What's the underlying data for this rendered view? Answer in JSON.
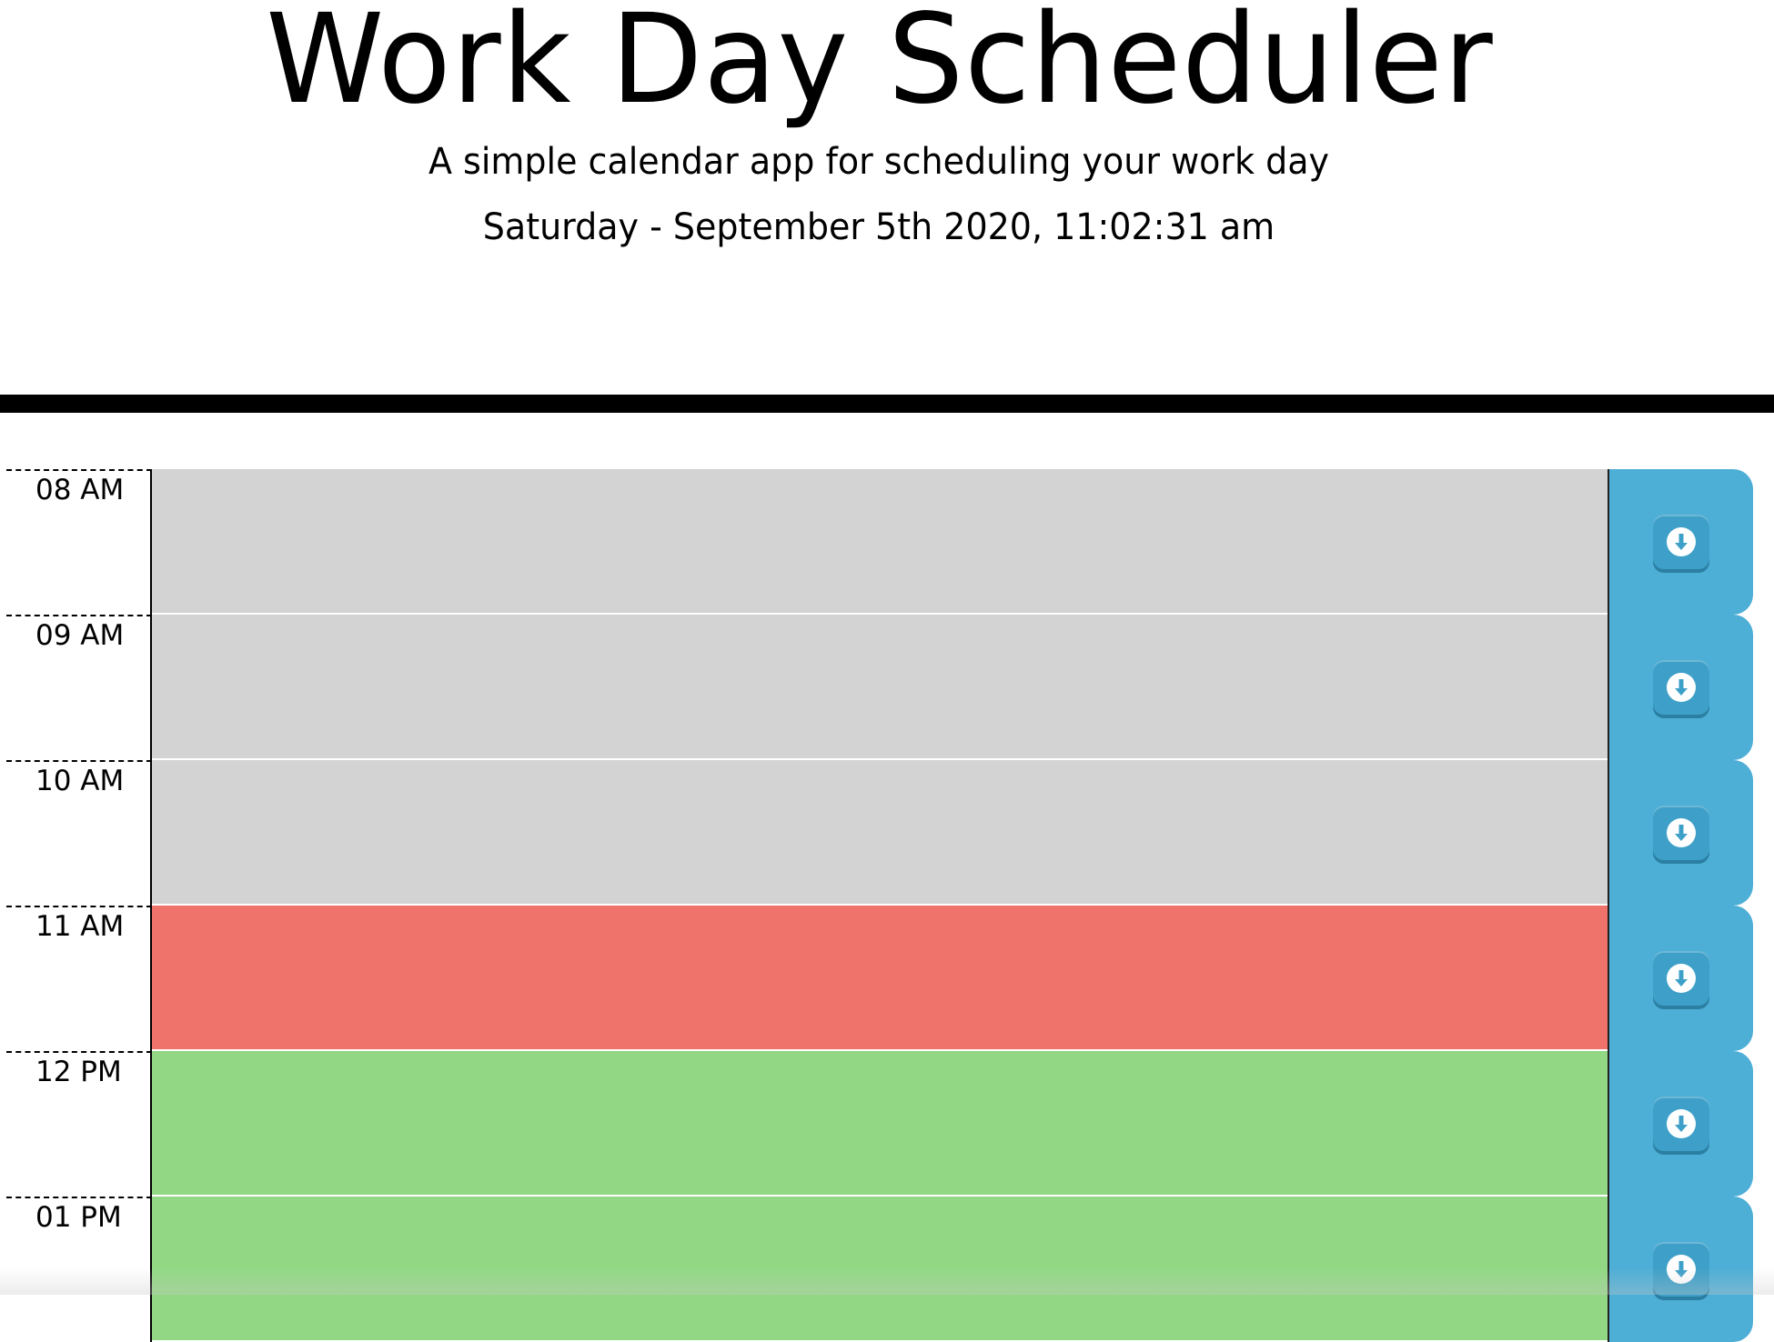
{
  "header": {
    "title": "Work Day Scheduler",
    "subtitle": "A simple calendar app for scheduling your work day",
    "current_datetime": "Saturday - September 5th 2020, 11:02:31 am"
  },
  "timeblocks": [
    {
      "hour_label": "08 AM",
      "text": "",
      "status": "past"
    },
    {
      "hour_label": "09 AM",
      "text": "",
      "status": "past"
    },
    {
      "hour_label": "10 AM",
      "text": "",
      "status": "past"
    },
    {
      "hour_label": "11 AM",
      "text": "",
      "status": "present"
    },
    {
      "hour_label": "12 PM",
      "text": "",
      "status": "future"
    },
    {
      "hour_label": "01 PM",
      "text": "",
      "status": "future"
    }
  ],
  "icons": {
    "save": "download-icon"
  },
  "colors": {
    "past": "#d3d3d3",
    "present": "#ef736b",
    "future": "#92d884",
    "save_button": "#4daed6",
    "divider": "#000000"
  }
}
